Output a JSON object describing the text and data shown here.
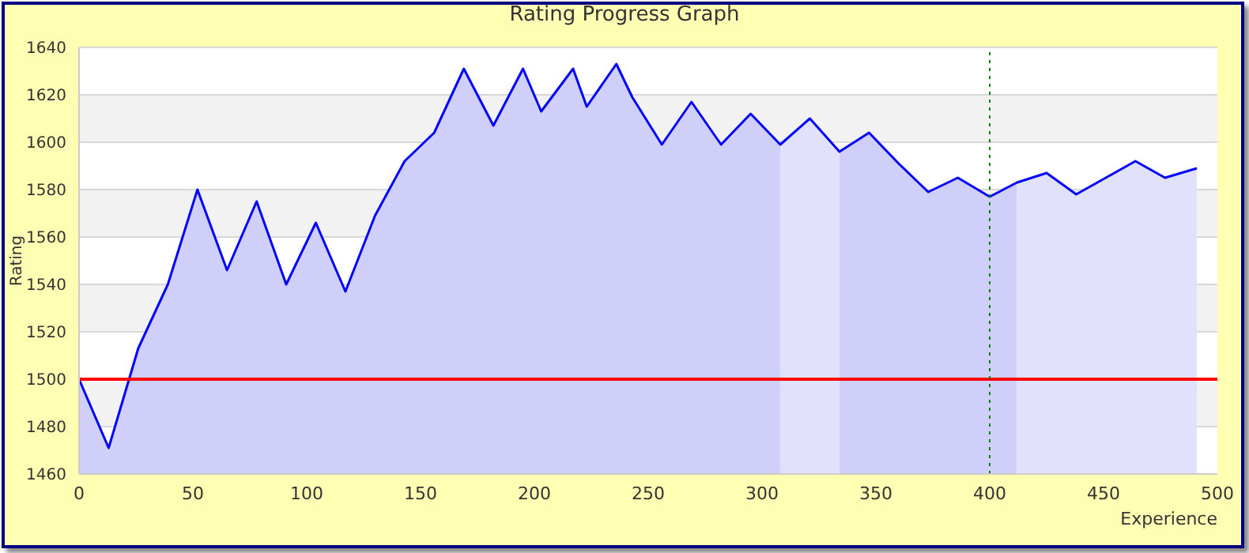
{
  "chart_data": {
    "type": "line",
    "title": "Rating Progress Graph",
    "xlabel": "Experience",
    "ylabel": "Rating",
    "x": [
      0,
      13,
      26,
      39,
      52,
      65,
      78,
      91,
      104,
      117,
      130,
      143,
      156,
      169,
      182,
      195,
      203,
      217,
      223,
      236,
      243,
      256,
      269,
      282,
      295,
      308,
      321,
      334,
      347,
      360,
      373,
      386,
      400,
      412,
      425,
      438,
      451,
      464,
      477,
      491
    ],
    "series": [
      {
        "type": "area",
        "color": "#cfcffa",
        "values": [
          1500,
          1471,
          1513,
          1540,
          1580,
          1546,
          1575,
          1540,
          1566,
          1537,
          1569,
          1592,
          1604,
          1631,
          1607,
          1631,
          1613,
          1631,
          1615,
          1633,
          1619,
          1599,
          1617,
          1599,
          1612,
          1599,
          null,
          1596,
          1604,
          1591,
          1579,
          1585,
          1577,
          1583,
          null,
          null,
          null,
          null,
          null,
          null
        ]
      },
      {
        "type": "area",
        "color": "#e1e1fb",
        "values": [
          null,
          null,
          null,
          null,
          null,
          null,
          null,
          null,
          null,
          null,
          null,
          null,
          null,
          null,
          null,
          null,
          null,
          null,
          null,
          null,
          null,
          null,
          null,
          null,
          null,
          1599,
          1610,
          1596,
          null,
          null,
          null,
          null,
          null,
          1583,
          1587,
          1578,
          1585,
          1592,
          1585,
          1589
        ]
      },
      {
        "color": "#0000ff",
        "values": [
          1500,
          1471,
          1513,
          1540,
          1580,
          1546,
          1575,
          1540,
          1566,
          1537,
          1569,
          1592,
          1604,
          1631,
          1607,
          1631,
          1613,
          1631,
          1615,
          1633,
          1619,
          1599,
          1617,
          1599,
          1612,
          1599,
          1610,
          1596,
          1604,
          1591,
          1579,
          1585,
          1577,
          1583,
          1587,
          1578,
          1585,
          1592,
          1585,
          1589
        ]
      }
    ],
    "xlim": [
      0,
      500
    ],
    "xticks": [
      0,
      50,
      100,
      150,
      200,
      250,
      300,
      350,
      400,
      450,
      500
    ],
    "ylim": [
      1460,
      1640
    ],
    "yticks": [
      1460,
      1480,
      1500,
      1520,
      1540,
      1560,
      1580,
      1600,
      1620,
      1640
    ],
    "ref_lines": [
      {
        "axis": "y",
        "value": 1500,
        "color": "#ff0000",
        "line_style": "solid"
      },
      {
        "axis": "x",
        "value": 400,
        "color": "#008000",
        "line_style": "dotted"
      }
    ],
    "grid": "y",
    "marker": "none"
  }
}
